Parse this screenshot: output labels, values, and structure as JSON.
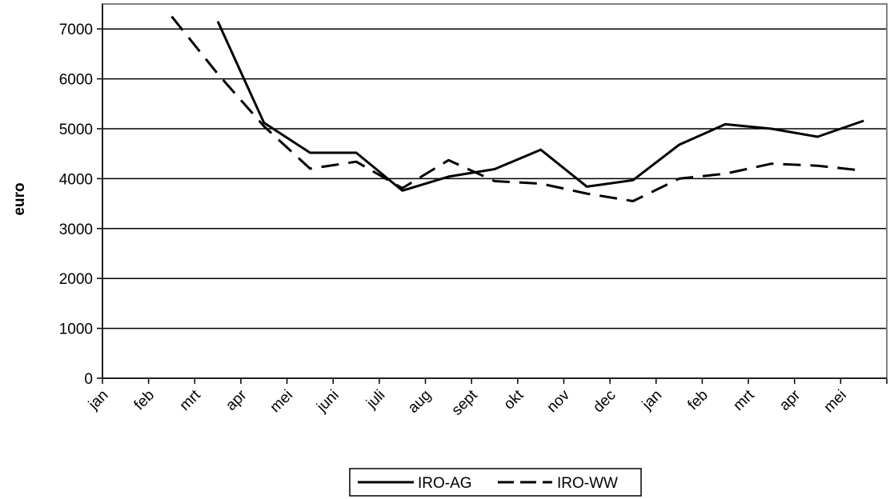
{
  "chart_data": {
    "type": "line",
    "categories": [
      "jan",
      "feb",
      "mrt",
      "apr",
      "mei",
      "juni",
      "juli",
      "aug",
      "sept",
      "okt",
      "nov",
      "dec",
      "jan",
      "feb",
      "mrt",
      "apr",
      "mei"
    ],
    "series": [
      {
        "name": "IRO-AG",
        "style": "solid",
        "values": [
          null,
          null,
          7150,
          5120,
          4520,
          4520,
          3760,
          4040,
          4190,
          4580,
          3840,
          3970,
          4680,
          5090,
          5000,
          4840,
          5160
        ],
        "color": "#000000"
      },
      {
        "name": "IRO-WW",
        "style": "dashed",
        "values": [
          null,
          7250,
          6100,
          5050,
          4200,
          4340,
          3810,
          4370,
          3950,
          3900,
          3700,
          3550,
          4000,
          4100,
          4300,
          4260,
          4160
        ],
        "color": "#000000"
      }
    ],
    "title": "",
    "xlabel": "",
    "ylabel": "euro",
    "ylim": [
      0,
      7500
    ],
    "yticks": [
      0,
      1000,
      2000,
      3000,
      4000,
      5000,
      6000,
      7000
    ],
    "grid": "horizontal",
    "legend_position": "bottom"
  }
}
